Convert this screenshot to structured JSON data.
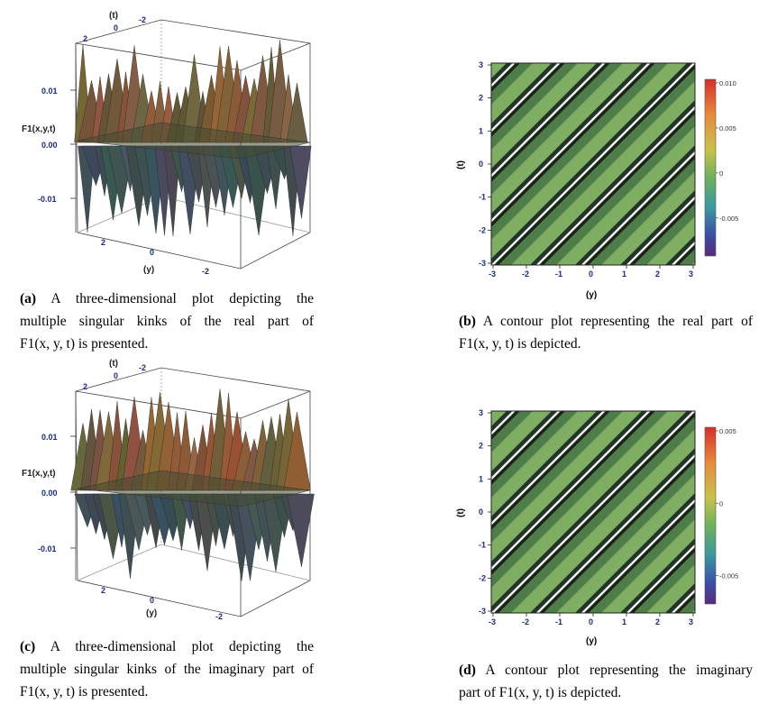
{
  "panels": [
    {
      "id": "a",
      "type": "surface3d",
      "z_tick_labels": [
        "0.01",
        "0.00",
        "-0.01"
      ],
      "y_tick_labels": [
        "2",
        "0",
        "-2"
      ],
      "t_tick_labels": [
        "2",
        "0",
        "-2"
      ],
      "axis_y_label": "(y)",
      "axis_t_label": "(t)",
      "axis_z_label": "F1(x,y,t)",
      "caption_tag": "(a)",
      "caption_lines": [
        "A three-dimensional plot depicting the",
        "multiple singular kinks of the real part of",
        "F1(x, y, t) is presented."
      ]
    },
    {
      "id": "b",
      "type": "contour",
      "x_tick_labels": [
        "-3",
        "-2",
        "-1",
        "0",
        "1",
        "2",
        "3"
      ],
      "y_tick_labels": [
        "3",
        "2",
        "1",
        "0",
        "-1",
        "-2",
        "-3"
      ],
      "colorbar_labels": [
        "0.010",
        "0.005",
        "0",
        "-0.005"
      ],
      "axis_x_label": "(y)",
      "axis_y_label": "(t)",
      "caption_tag": "(b)",
      "caption_lines": [
        "A contour plot representing the real part of",
        "F1(x, y, t) is depicted."
      ]
    },
    {
      "id": "c",
      "type": "surface3d",
      "z_tick_labels": [
        "0.01",
        "0.00",
        "-0.01"
      ],
      "y_tick_labels": [
        "2",
        "0",
        "-2"
      ],
      "t_tick_labels": [
        "2",
        "0",
        "-2"
      ],
      "axis_y_label": "(y)",
      "axis_t_label": "(t)",
      "axis_z_label": "F1(x,y,t)",
      "caption_tag": "(c)",
      "caption_lines": [
        "A three-dimensional plot depicting the",
        "multiple singular kinks of the imaginary part of",
        "F1(x, y, t) is presented."
      ]
    },
    {
      "id": "d",
      "type": "contour",
      "x_tick_labels": [
        "-3",
        "-2",
        "-1",
        "0",
        "1",
        "2",
        "3"
      ],
      "y_tick_labels": [
        "3",
        "2",
        "1",
        "0",
        "-1",
        "-2",
        "-3"
      ],
      "colorbar_labels": [
        "0.005",
        "0",
        "-0.005"
      ],
      "axis_x_label": "(y)",
      "axis_y_label": "(t)",
      "caption_tag": "(d)",
      "caption_lines": [
        "A contour plot representing the imaginary",
        "part of F1(x, y, t) is depicted."
      ]
    }
  ]
}
